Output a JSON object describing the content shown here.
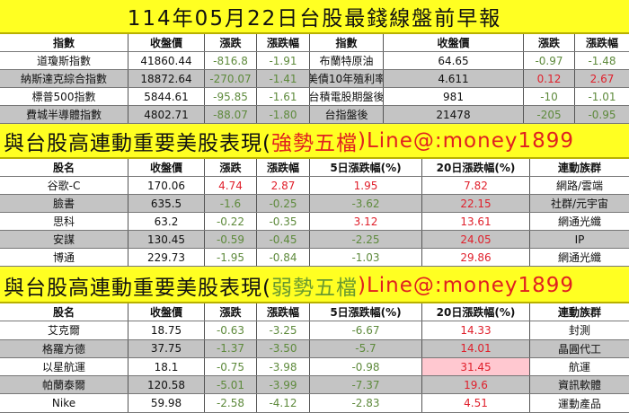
{
  "title": "114年05月22日台股最錢線盤前早報",
  "colors": {
    "up": "#e0202c",
    "down": "#5e8a3c",
    "banner": "#ffff22",
    "gray_row": "#c4c4c4",
    "highlight": "#ffc8d0"
  },
  "indices": {
    "headers": [
      "指數",
      "收盤價",
      "漲跌",
      "漲跌幅",
      "指數",
      "收盤價",
      "漲跌",
      "漲跌幅"
    ],
    "rows": [
      [
        {
          "v": "道瓊斯指數"
        },
        {
          "v": "41860.44"
        },
        {
          "v": "-816.8",
          "c": "dn"
        },
        {
          "v": "-1.91",
          "c": "dn"
        },
        {
          "v": "布蘭特原油"
        },
        {
          "v": "64.65"
        },
        {
          "v": "-0.97",
          "c": "dn"
        },
        {
          "v": "-1.48",
          "c": "dn"
        }
      ],
      [
        {
          "v": "納斯達克綜合指數"
        },
        {
          "v": "18872.64"
        },
        {
          "v": "-270.07",
          "c": "dn"
        },
        {
          "v": "-1.41",
          "c": "dn"
        },
        {
          "v": "美債10年殖利率"
        },
        {
          "v": "4.611"
        },
        {
          "v": "0.12",
          "c": "up"
        },
        {
          "v": "2.67",
          "c": "up"
        }
      ],
      [
        {
          "v": "標普500指數"
        },
        {
          "v": "5844.61"
        },
        {
          "v": "-95.85",
          "c": "dn"
        },
        {
          "v": "-1.61",
          "c": "dn"
        },
        {
          "v": "台積電股期盤後"
        },
        {
          "v": "981"
        },
        {
          "v": "-10",
          "c": "dn"
        },
        {
          "v": "-1.01",
          "c": "dn"
        }
      ],
      [
        {
          "v": "費城半導體指數"
        },
        {
          "v": "4802.71"
        },
        {
          "v": "-88.07",
          "c": "dn"
        },
        {
          "v": "-1.80",
          "c": "dn"
        },
        {
          "v": "台指盤後"
        },
        {
          "v": "21478"
        },
        {
          "v": "-205",
          "c": "dn"
        },
        {
          "v": "-0.95",
          "c": "dn"
        }
      ]
    ]
  },
  "strong": {
    "banner_prefix": "與台股高連動重要美股表現(",
    "banner_tag": "強勢五檔",
    "banner_suffix": ")Line@:money1899",
    "headers": [
      "股名",
      "收盤價",
      "漲跌",
      "漲跌幅",
      "5日漲跌幅(%)",
      "20日漲跌幅(%)",
      "連動族群"
    ],
    "rows": [
      [
        {
          "v": "谷歌-C"
        },
        {
          "v": "170.06"
        },
        {
          "v": "4.74",
          "c": "up"
        },
        {
          "v": "2.87",
          "c": "up"
        },
        {
          "v": "1.95",
          "c": "up"
        },
        {
          "v": "7.82",
          "c": "up"
        },
        {
          "v": "網路/雲端"
        }
      ],
      [
        {
          "v": "臉書"
        },
        {
          "v": "635.5"
        },
        {
          "v": "-1.6",
          "c": "dn"
        },
        {
          "v": "-0.25",
          "c": "dn"
        },
        {
          "v": "-3.62",
          "c": "dn"
        },
        {
          "v": "22.15",
          "c": "up"
        },
        {
          "v": "社群/元宇宙"
        }
      ],
      [
        {
          "v": "思科"
        },
        {
          "v": "63.2"
        },
        {
          "v": "-0.22",
          "c": "dn"
        },
        {
          "v": "-0.35",
          "c": "dn"
        },
        {
          "v": "3.12",
          "c": "up"
        },
        {
          "v": "13.61",
          "c": "up"
        },
        {
          "v": "網通光纖"
        }
      ],
      [
        {
          "v": "安謀"
        },
        {
          "v": "130.45"
        },
        {
          "v": "-0.59",
          "c": "dn"
        },
        {
          "v": "-0.45",
          "c": "dn"
        },
        {
          "v": "-2.25",
          "c": "dn"
        },
        {
          "v": "24.05",
          "c": "up"
        },
        {
          "v": "IP"
        }
      ],
      [
        {
          "v": "博通"
        },
        {
          "v": "229.73"
        },
        {
          "v": "-1.95",
          "c": "dn"
        },
        {
          "v": "-0.84",
          "c": "dn"
        },
        {
          "v": "-1.03",
          "c": "dn"
        },
        {
          "v": "29.86",
          "c": "up"
        },
        {
          "v": "網通光纖"
        }
      ]
    ]
  },
  "weak": {
    "banner_prefix": "與台股高連動重要美股表現(",
    "banner_tag": "弱勢五檔",
    "banner_suffix": ")Line@:money1899",
    "headers": [
      "股名",
      "收盤價",
      "漲跌",
      "漲跌幅",
      "5日漲跌幅(%)",
      "20日漲跌幅(%)",
      "連動族群"
    ],
    "rows": [
      [
        {
          "v": "艾克爾"
        },
        {
          "v": "18.75"
        },
        {
          "v": "-0.63",
          "c": "dn"
        },
        {
          "v": "-3.25",
          "c": "dn"
        },
        {
          "v": "-6.67",
          "c": "dn"
        },
        {
          "v": "14.33",
          "c": "up"
        },
        {
          "v": "封測"
        }
      ],
      [
        {
          "v": "格羅方德"
        },
        {
          "v": "37.75"
        },
        {
          "v": "-1.37",
          "c": "dn"
        },
        {
          "v": "-3.50",
          "c": "dn"
        },
        {
          "v": "-5.7",
          "c": "dn"
        },
        {
          "v": "14.01",
          "c": "up"
        },
        {
          "v": "晶圓代工"
        }
      ],
      [
        {
          "v": "以星航運"
        },
        {
          "v": "18.1"
        },
        {
          "v": "-0.75",
          "c": "dn"
        },
        {
          "v": "-3.98",
          "c": "dn"
        },
        {
          "v": "-0.98",
          "c": "dn"
        },
        {
          "v": "31.45",
          "c": "up",
          "hl": true
        },
        {
          "v": "航運"
        }
      ],
      [
        {
          "v": "帕蘭泰爾"
        },
        {
          "v": "120.58"
        },
        {
          "v": "-5.01",
          "c": "dn"
        },
        {
          "v": "-3.99",
          "c": "dn"
        },
        {
          "v": "-7.37",
          "c": "dn"
        },
        {
          "v": "19.6",
          "c": "up"
        },
        {
          "v": "資訊軟體"
        }
      ],
      [
        {
          "v": "Nike"
        },
        {
          "v": "59.98"
        },
        {
          "v": "-2.58",
          "c": "dn"
        },
        {
          "v": "-4.12",
          "c": "dn"
        },
        {
          "v": "-2.83",
          "c": "dn"
        },
        {
          "v": "4.51",
          "c": "up"
        },
        {
          "v": "運動產品"
        }
      ]
    ]
  }
}
